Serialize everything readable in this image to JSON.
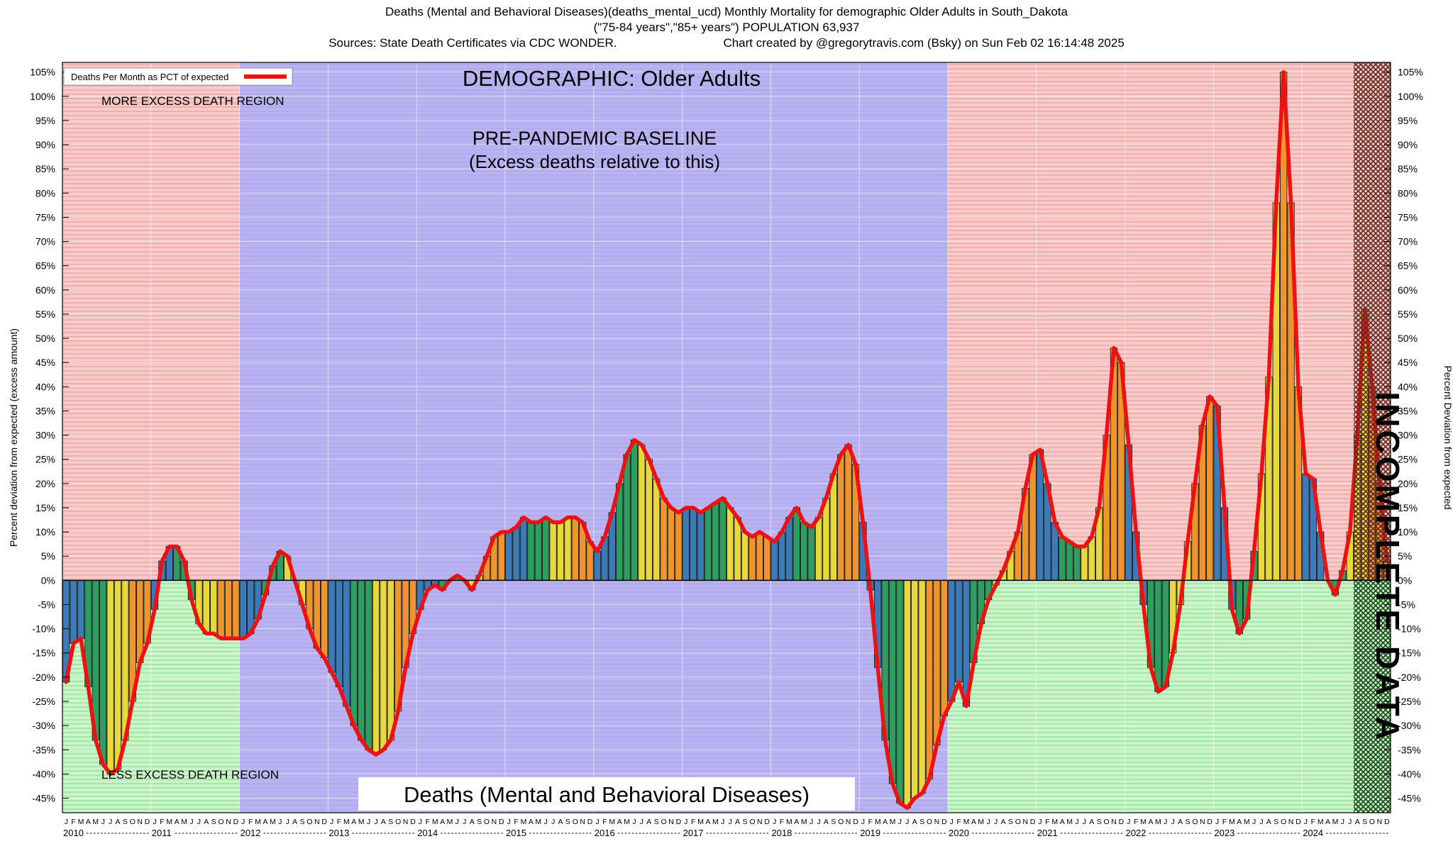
{
  "header": {
    "title_line1": "Deaths (Mental and Behavioral Diseases)(deaths_mental_ucd) Monthly Mortality for demographic Older Adults in South_Dakota",
    "title_line2": "(\"75-84 years\",\"85+ years\") POPULATION 63,937",
    "title_line3_left": "Sources: State Death Certificates via CDC WONDER.",
    "title_line3_right": "Chart created by @gregorytravis.com (Bsky) on Sun Feb 02 16:14:48 2025"
  },
  "legend": {
    "label": "Deaths Per Month as PCT of expected"
  },
  "annotations": {
    "more_excess": "MORE EXCESS DEATH REGION",
    "less_excess": "LESS EXCESS DEATH REGION",
    "demographic": "DEMOGRAPHIC: Older Adults",
    "baseline_title": "PRE-PANDEMIC BASELINE",
    "baseline_sub": "(Excess deaths relative to this)",
    "bottom_label": "Deaths (Mental and Behavioral Diseases)",
    "incomplete": "INCOMPLETE DATA",
    "y_left": "Percent deviation from expected (excess amount)",
    "y_right": "Percent Deviation from expected"
  },
  "chart_data": {
    "type": "bar",
    "title": "Deaths (Mental and Behavioral Diseases) Monthly Mortality, Older Adults, South Dakota",
    "series_name": "Deaths Per Month as PCT of expected",
    "xlabel": "",
    "ylabel": "Percent deviation from expected (excess amount)",
    "ylim": [
      -48,
      107
    ],
    "ytick_min": -45,
    "ytick_max": 105,
    "ytick_step": 5,
    "ytick_suffix": "%",
    "grid": true,
    "month_letters": [
      "J",
      "F",
      "M",
      "A",
      "M",
      "J",
      "J",
      "A",
      "S",
      "O",
      "N",
      "D"
    ],
    "values_by_year": {
      "2010": [
        -21,
        -13,
        -12,
        -22,
        -33,
        -38,
        -40,
        -39,
        -33,
        -25,
        -17,
        -13
      ],
      "2011": [
        -6,
        4,
        7,
        7,
        4,
        -4,
        -9,
        -11,
        -11,
        -12,
        -12,
        -12
      ],
      "2012": [
        -12,
        -11,
        -8,
        -3,
        3,
        6,
        5,
        0,
        -5,
        -10,
        -14,
        -16
      ],
      "2013": [
        -19,
        -22,
        -26,
        -30,
        -33,
        -35,
        -36,
        -35,
        -33,
        -27,
        -18,
        -11
      ],
      "2014": [
        -6,
        -2,
        -1,
        -2,
        0,
        1,
        0,
        -2,
        1,
        5,
        9,
        10
      ],
      "2015": [
        10,
        11,
        13,
        12,
        12,
        13,
        12,
        12,
        13,
        13,
        12,
        8
      ],
      "2016": [
        6,
        9,
        14,
        20,
        26,
        29,
        28,
        25,
        21,
        17,
        15,
        14
      ],
      "2017": [
        15,
        15,
        14,
        15,
        16,
        17,
        15,
        13,
        10,
        9,
        10,
        9
      ],
      "2018": [
        8,
        10,
        13,
        15,
        12,
        11,
        13,
        17,
        22,
        26,
        28,
        24
      ],
      "2019": [
        12,
        -2,
        -18,
        -33,
        -42,
        -46,
        -47,
        -45,
        -44,
        -41,
        -34,
        -28
      ],
      "2020": [
        -25,
        -21,
        -26,
        -17,
        -9,
        -4,
        -1,
        2,
        6,
        10,
        19,
        26
      ],
      "2021": [
        27,
        20,
        12,
        9,
        8,
        7,
        7,
        9,
        15,
        30,
        48,
        45
      ],
      "2022": [
        28,
        10,
        -5,
        -18,
        -23,
        -22,
        -15,
        -5,
        8,
        20,
        32,
        38
      ],
      "2023": [
        36,
        15,
        -6,
        -11,
        -8,
        6,
        22,
        42,
        78,
        105,
        78,
        40
      ],
      "2024": [
        22,
        21,
        10,
        0,
        -3,
        2,
        10,
        30,
        56,
        40,
        20,
        4
      ]
    },
    "regions": {
      "baseline": {
        "label": "PRE-PANDEMIC BASELINE",
        "start_month_index": 24,
        "end_month_index": 120
      },
      "incomplete": {
        "label": "INCOMPLETE DATA",
        "start_month_index": 175,
        "end_month_index": 180
      }
    },
    "colors": {
      "line": "#ee1111",
      "quarter_colors": [
        "#3d7ab8",
        "#2e9e60",
        "#e7d83b",
        "#ee9530"
      ],
      "excess_bg": "#f7caca",
      "excess_line": "#efa3a3",
      "deficit_bg": "#c9f4c9",
      "deficit_line": "#97e297",
      "baseline_bg": "#b9b3f1",
      "baseline_line": "#aea8ee",
      "incomplete_top": "#5d2a1e",
      "incomplete_bottom": "#1d431d",
      "grid": "#ffffff"
    }
  }
}
